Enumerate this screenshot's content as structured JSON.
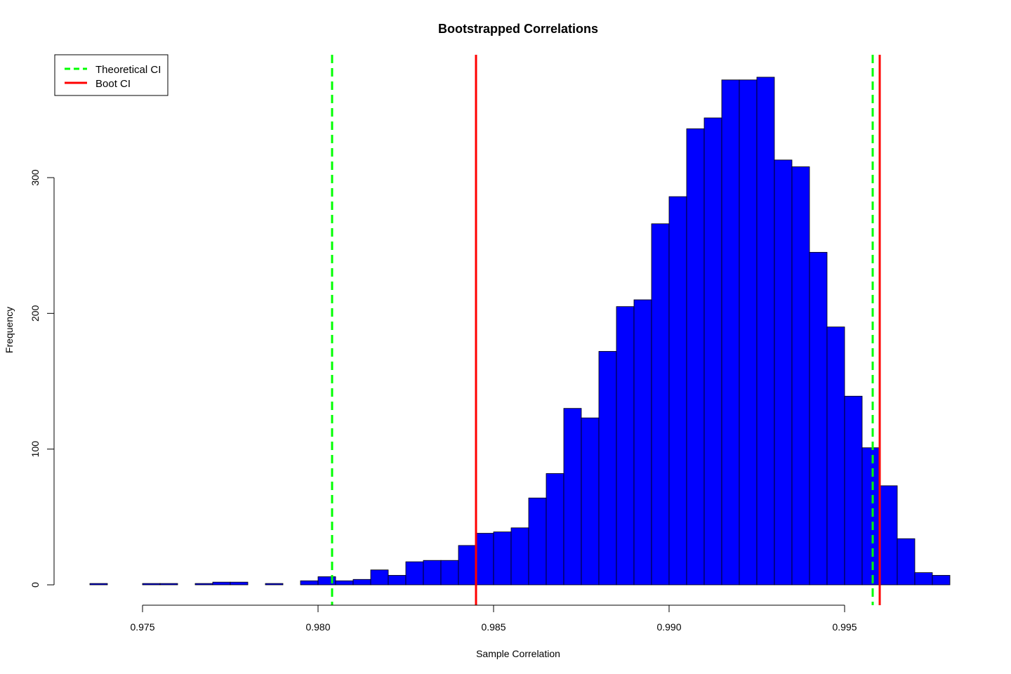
{
  "chart_data": {
    "type": "bar",
    "title": "Bootstrapped Correlations",
    "xlabel": "Sample Correlation",
    "ylabel": "Frequency",
    "bin_width": 0.0005,
    "bin_start": 0.9735,
    "values": [
      1,
      0,
      0,
      1,
      1,
      0,
      1,
      2,
      2,
      0,
      1,
      0,
      3,
      6,
      3,
      4,
      11,
      7,
      17,
      18,
      18,
      29,
      38,
      39,
      42,
      64,
      82,
      130,
      123,
      172,
      205,
      210,
      266,
      286,
      336,
      344,
      372,
      372,
      374,
      313,
      308,
      245,
      190,
      139,
      101,
      73,
      34,
      9,
      7
    ],
    "xlim": [
      0.9735,
      0.998
    ],
    "ylim": [
      0,
      380
    ],
    "x_ticks": [
      0.975,
      0.98,
      0.985,
      0.99,
      0.995
    ],
    "x_tick_labels": [
      "0.975",
      "0.980",
      "0.985",
      "0.990",
      "0.995"
    ],
    "y_ticks": [
      0,
      100,
      200,
      300
    ],
    "y_tick_labels": [
      "0",
      "100",
      "200",
      "300"
    ],
    "bar_color": "#0000ff",
    "grid": false,
    "vlines": [
      {
        "group": "theoretical",
        "x": 0.9804,
        "color": "#00ff00",
        "style": "dashed"
      },
      {
        "group": "theoretical",
        "x": 0.9958,
        "color": "#00ff00",
        "style": "dashed"
      },
      {
        "group": "boot",
        "x": 0.9845,
        "color": "#ff0000",
        "style": "solid"
      },
      {
        "group": "boot",
        "x": 0.996,
        "color": "#ff0000",
        "style": "solid"
      }
    ],
    "legend": {
      "placement": "top-left",
      "entries": [
        {
          "label": "Theoretical CI",
          "color": "#00ff00",
          "style": "dashed"
        },
        {
          "label": "Boot CI",
          "color": "#ff0000",
          "style": "solid"
        }
      ]
    }
  }
}
